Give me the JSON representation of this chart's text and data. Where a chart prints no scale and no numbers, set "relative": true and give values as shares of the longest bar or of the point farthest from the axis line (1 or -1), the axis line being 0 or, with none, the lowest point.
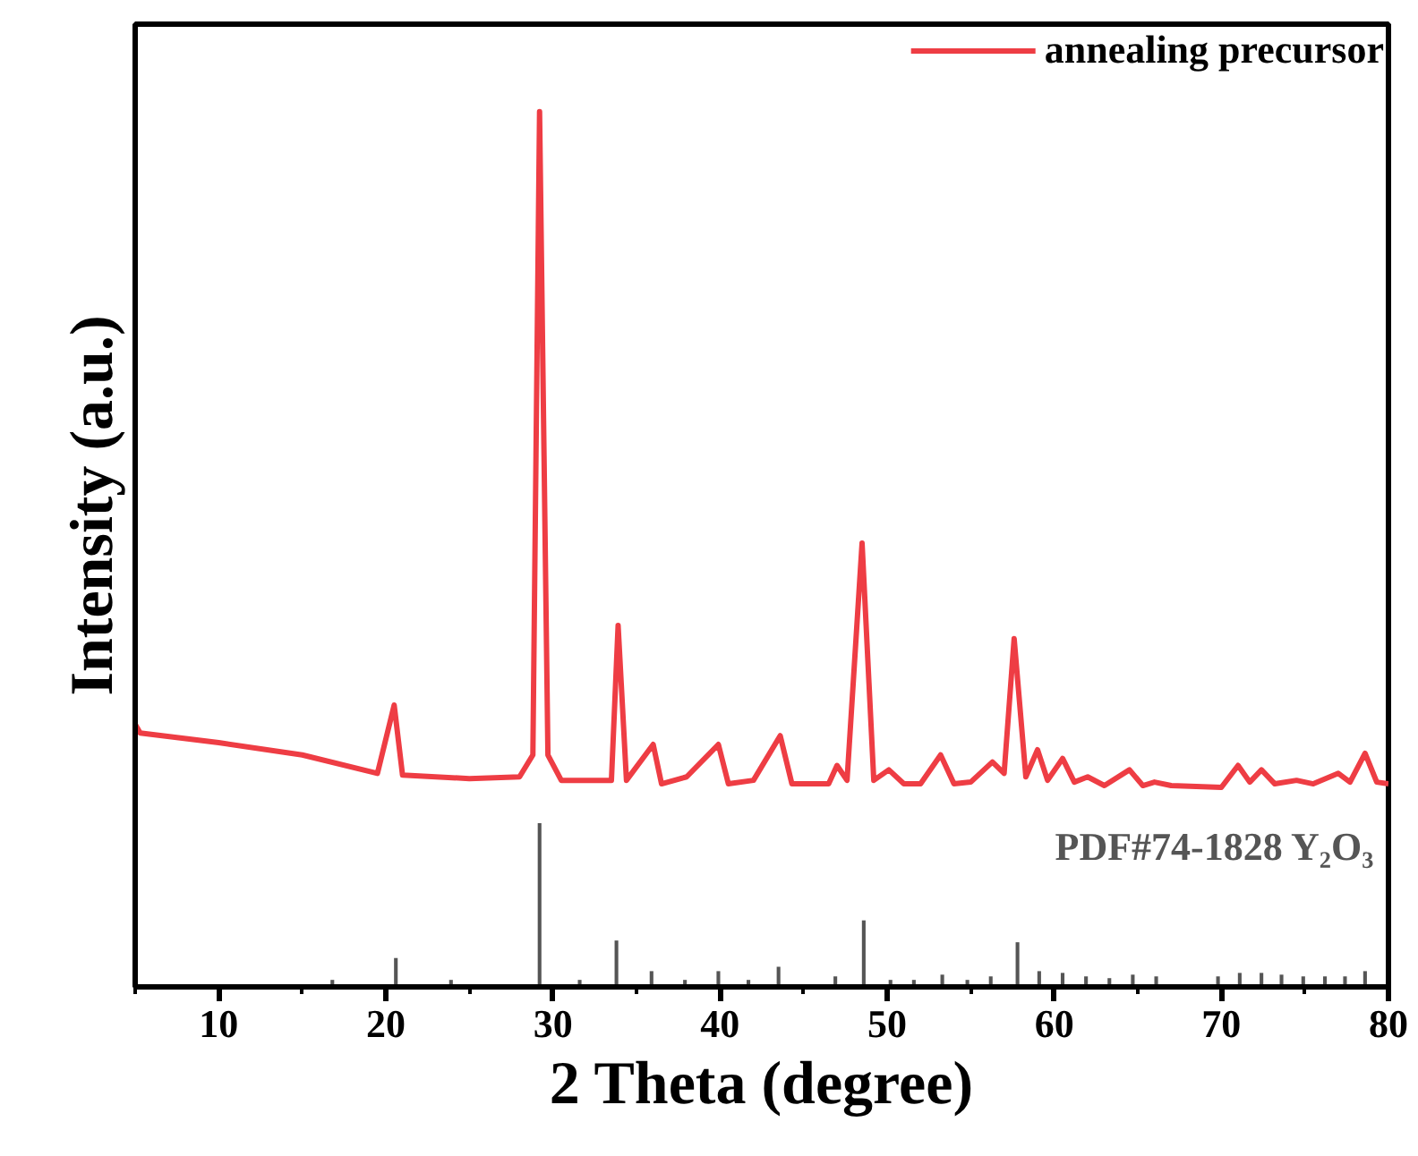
{
  "chart_data": {
    "type": "line",
    "relative": true,
    "xlabel": "2 Theta (degree)",
    "ylabel": "Intensity (a.u.)",
    "xlim": [
      5,
      80
    ],
    "xticks": [
      10,
      20,
      30,
      40,
      50,
      60,
      70,
      80
    ],
    "tick_labels": "x",
    "legend": "top right",
    "grid": false,
    "series": [
      {
        "name": "annealing precursor",
        "color": "#ee3d44",
        "x": [
          5,
          5.3,
          10,
          15,
          19.5,
          20.5,
          21,
          25,
          28,
          28.8,
          29.2,
          29.7,
          30.5,
          33.5,
          33.9,
          34.4,
          36,
          36.5,
          38,
          39.9,
          40.5,
          42,
          43.6,
          44.3,
          46.5,
          47,
          47.6,
          48.5,
          49.2,
          50.1,
          51,
          52,
          53.2,
          54,
          55,
          56.3,
          57,
          57.6,
          58.3,
          59,
          59.6,
          60.5,
          61.2,
          62,
          63,
          64.5,
          65.3,
          66,
          67,
          70,
          71,
          71.7,
          72.4,
          73.2,
          74.5,
          75.5,
          77,
          77.7,
          78.6,
          79.3,
          80
        ],
        "values": [
          0.3,
          0.29,
          0.279,
          0.265,
          0.244,
          0.322,
          0.242,
          0.238,
          0.24,
          0.265,
          1.0,
          0.265,
          0.236,
          0.236,
          0.413,
          0.236,
          0.277,
          0.232,
          0.24,
          0.277,
          0.232,
          0.236,
          0.287,
          0.232,
          0.232,
          0.253,
          0.236,
          0.507,
          0.236,
          0.248,
          0.232,
          0.232,
          0.265,
          0.232,
          0.234,
          0.257,
          0.244,
          0.398,
          0.24,
          0.271,
          0.236,
          0.261,
          0.234,
          0.24,
          0.23,
          0.248,
          0.23,
          0.234,
          0.23,
          0.228,
          0.253,
          0.234,
          0.248,
          0.232,
          0.236,
          0.232,
          0.244,
          0.234,
          0.267,
          0.234,
          0.232
        ]
      },
      {
        "name": "PDF#74-1828 Y₂O₃",
        "color": "#555555",
        "type": "bar",
        "x": [
          16.8,
          20.6,
          23.9,
          29.2,
          31.6,
          33.8,
          35.9,
          37.9,
          39.9,
          41.7,
          43.5,
          46.9,
          48.6,
          50.2,
          51.6,
          53.3,
          54.8,
          56.2,
          57.8,
          59.1,
          60.5,
          61.9,
          63.3,
          64.7,
          66.1,
          69.8,
          71.1,
          72.4,
          73.6,
          74.9,
          76.2,
          77.4,
          78.6
        ],
        "values": [
          0.008,
          0.033,
          0.008,
          0.187,
          0.008,
          0.053,
          0.018,
          0.008,
          0.018,
          0.008,
          0.023,
          0.012,
          0.076,
          0.008,
          0.008,
          0.014,
          0.008,
          0.012,
          0.051,
          0.018,
          0.016,
          0.012,
          0.01,
          0.014,
          0.012,
          0.012,
          0.016,
          0.016,
          0.014,
          0.012,
          0.012,
          0.012,
          0.018
        ]
      }
    ]
  }
}
